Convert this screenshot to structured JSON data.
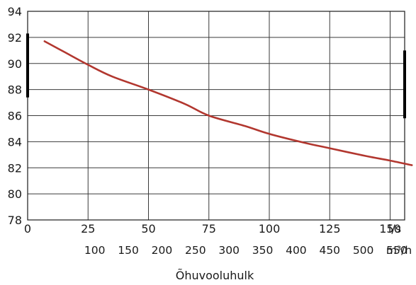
{
  "chart_data": {
    "type": "line",
    "xlabel": "Õhuvooluhulk",
    "ylabel": "",
    "xlim": [
      0,
      161
    ],
    "ylim": [
      78,
      94
    ],
    "grid": true,
    "x_ticks_ls": [
      "0",
      "25",
      "50",
      "75",
      "100",
      "125",
      "150"
    ],
    "x_ticks_ls_values": [
      0,
      25,
      50,
      75,
      100,
      125,
      150
    ],
    "x_unit_ls": "l/s",
    "x_ticks_m3h": [
      "100",
      "150",
      "200",
      "250",
      "300",
      "350",
      "400",
      "450",
      "500",
      "550"
    ],
    "x_ticks_m3h_values": [
      100,
      150,
      200,
      250,
      300,
      350,
      400,
      450,
      500,
      550
    ],
    "x_unit_m3h": "m³/h",
    "y_ticks": [
      "78",
      "80",
      "82",
      "84",
      "86",
      "88",
      "90",
      "92",
      "94"
    ],
    "y_ticks_values": [
      78,
      80,
      82,
      84,
      86,
      88,
      90,
      92,
      94
    ],
    "series": [
      {
        "color": "#b2372f",
        "x": [
          7,
          15,
          25,
          35,
          50,
          65,
          75,
          90,
          100,
          115,
          125,
          140,
          150,
          159
        ],
        "y": [
          91.7,
          90.9,
          89.9,
          89.0,
          88.0,
          86.9,
          86.0,
          85.2,
          84.6,
          83.9,
          83.5,
          82.9,
          82.55,
          82.2
        ]
      }
    ],
    "side_markers": [
      {
        "side": "left",
        "from": 87.4,
        "to": 92.3
      },
      {
        "side": "right",
        "from": 85.8,
        "to": 91.0
      }
    ]
  }
}
